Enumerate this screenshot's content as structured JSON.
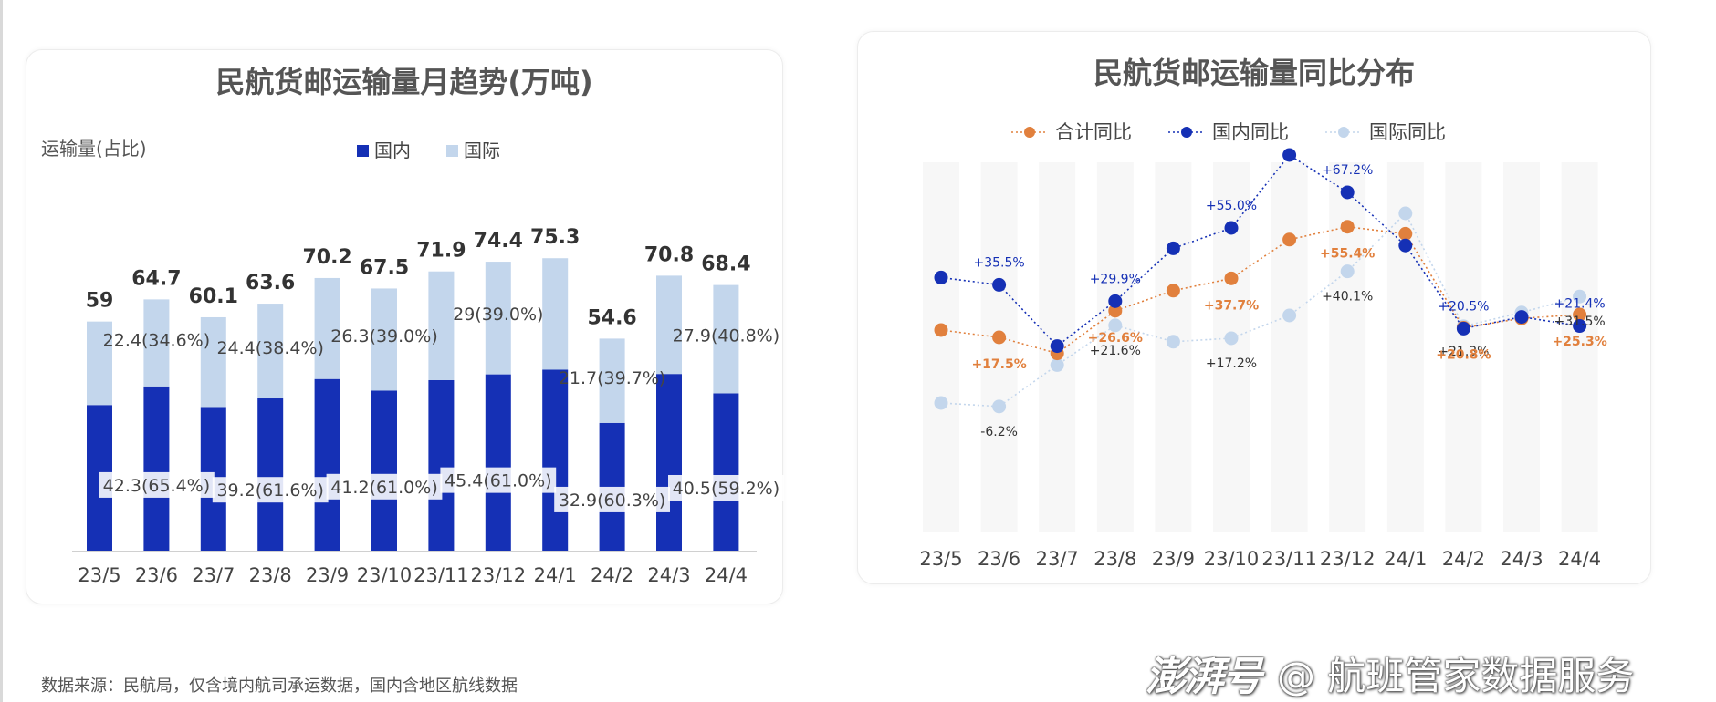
{
  "footer": {
    "source": "数据来源：民航局，仅含境内航司承运数据，国内含地区航线数据",
    "watermark_logo": "澎湃号",
    "watermark_text": "@ 航班管家数据服务"
  },
  "colors": {
    "domestic": "#1530b5",
    "international": "#c3d6ec",
    "total": "#e1803d",
    "stripe": "#f7f7f7"
  },
  "chart_data": [
    {
      "type": "bar",
      "stacked": true,
      "title": "民航货邮运输量月趋势(万吨)",
      "ylabel": "运输量(占比)",
      "legend_position": "top",
      "categories": [
        "23/5",
        "23/6",
        "23/7",
        "23/8",
        "23/9",
        "23/10",
        "23/11",
        "23/12",
        "24/1",
        "24/2",
        "24/3",
        "24/4"
      ],
      "totals": [
        59,
        64.7,
        60.1,
        63.6,
        70.2,
        67.5,
        71.9,
        74.4,
        75.3,
        54.6,
        70.8,
        68.4
      ],
      "series": [
        {
          "name": "国内",
          "values": [
            37.5,
            42.3,
            37.0,
            39.2,
            44.2,
            41.2,
            43.9,
            45.4,
            46.6,
            32.9,
            45.5,
            40.5
          ],
          "labels": [
            "",
            "42.3(65.4%)",
            "",
            "39.2(61.6%)",
            "",
            "41.2(61.0%)",
            "",
            "45.4(61.0%)",
            "",
            "32.9(60.3%)",
            "",
            "40.5(59.2%)"
          ]
        },
        {
          "name": "国际",
          "values": [
            21.5,
            22.4,
            23.1,
            24.4,
            26.0,
            26.3,
            28.0,
            29.0,
            28.7,
            21.7,
            25.3,
            27.9
          ],
          "labels": [
            "",
            "22.4(34.6%)",
            "",
            "24.4(38.4%)",
            "",
            "26.3(39.0%)",
            "",
            "29(39.0%)",
            "",
            "21.7(39.7%)",
            "",
            "27.9(40.8%)"
          ]
        }
      ],
      "ylim": [
        0,
        80
      ]
    },
    {
      "type": "line",
      "title": "民航货邮运输量同比分布",
      "legend_position": "top",
      "categories": [
        "23/5",
        "23/6",
        "23/7",
        "23/8",
        "23/9",
        "23/10",
        "23/11",
        "23/12",
        "24/1",
        "24/2",
        "24/3",
        "24/4"
      ],
      "series": [
        {
          "name": "合计同比",
          "values": [
            20.0,
            17.5,
            12.0,
            26.6,
            33.5,
            37.7,
            51.0,
            55.4,
            53.0,
            20.8,
            24.0,
            25.3
          ],
          "labels": [
            "",
            "+17.5%",
            "",
            "+26.6%",
            "",
            "+37.7%",
            "",
            "+55.4%",
            "",
            "+20.8%",
            "",
            "+25.3%"
          ]
        },
        {
          "name": "国内同比",
          "values": [
            38.0,
            35.5,
            14.5,
            29.9,
            48.0,
            55.0,
            80.0,
            67.2,
            49.0,
            20.5,
            24.5,
            21.4
          ],
          "labels": [
            "",
            "+35.5%",
            "",
            "+29.9%",
            "",
            "+55.0%",
            "",
            "+67.2%",
            "",
            "+20.5%",
            "",
            "+21.4%"
          ]
        },
        {
          "name": "国际同比",
          "values": [
            -5.0,
            -6.2,
            8.0,
            21.6,
            16.0,
            17.2,
            25.0,
            40.1,
            60.0,
            21.3,
            26.0,
            31.5
          ],
          "labels": [
            "",
            "-6.2%",
            "",
            "+21.6%",
            "",
            "+17.2%",
            "",
            "+40.1%",
            "",
            "+21.3%",
            "",
            "+31.5%"
          ]
        }
      ],
      "ylim": [
        -30,
        100
      ],
      "grid": false
    }
  ]
}
